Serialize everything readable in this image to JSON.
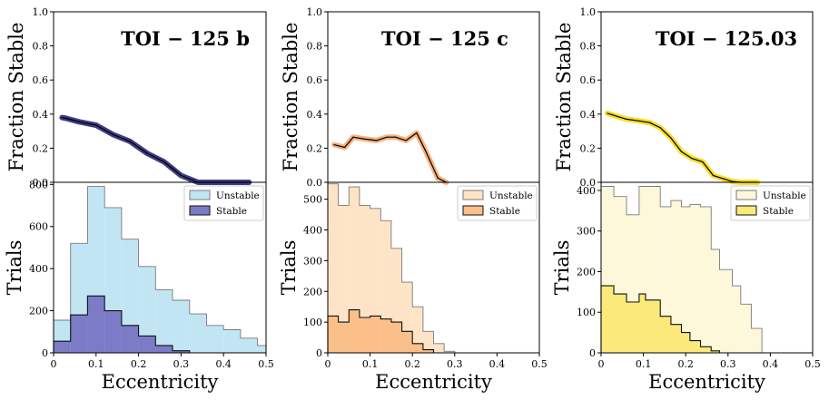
{
  "figure": {
    "xlabel": "Eccentricity",
    "top_ylabel": "Fraction Stable",
    "bottom_ylabel": "Trials",
    "legend": {
      "unstable": "Unstable",
      "stable": "Stable"
    }
  },
  "chart_data": [
    {
      "type": "line",
      "title": "TOI − 125 b",
      "ylabel": "Fraction Stable",
      "ylim": [
        0,
        1.0
      ],
      "xlim": [
        0,
        0.5
      ],
      "color": "#1a1a6e",
      "yticks": [
        "0.0",
        "0.2",
        "0.4",
        "0.6",
        "0.8",
        "1.0"
      ],
      "x": [
        0.02,
        0.03,
        0.06,
        0.1,
        0.14,
        0.18,
        0.22,
        0.26,
        0.3,
        0.34,
        0.38,
        0.42,
        0.46
      ],
      "y": [
        0.38,
        0.375,
        0.355,
        0.335,
        0.28,
        0.24,
        0.17,
        0.12,
        0.04,
        0.0,
        0.0,
        0.0,
        0.0
      ]
    },
    {
      "type": "line",
      "title": "TOI − 125 c",
      "ylabel": "Fraction Stable",
      "ylim": [
        0,
        1.0
      ],
      "xlim": [
        0,
        0.5
      ],
      "color": "#f5a46a",
      "yticks": [
        "0.0",
        "0.2",
        "0.4",
        "0.6",
        "0.8",
        "1.0"
      ],
      "x": [
        0.015,
        0.04,
        0.06,
        0.085,
        0.115,
        0.14,
        0.16,
        0.185,
        0.21,
        0.23,
        0.26,
        0.28
      ],
      "y": [
        0.22,
        0.205,
        0.265,
        0.255,
        0.245,
        0.265,
        0.265,
        0.245,
        0.29,
        0.19,
        0.025,
        0.0
      ]
    },
    {
      "type": "line",
      "title": "TOI − 125.03",
      "ylabel": "Fraction Stable",
      "ylim": [
        0,
        1.0
      ],
      "xlim": [
        0,
        0.5
      ],
      "color": "#f5d800",
      "yticks": [
        "0.0",
        "0.2",
        "0.4",
        "0.6",
        "0.8",
        "1.0"
      ],
      "x": [
        0.015,
        0.04,
        0.06,
        0.09,
        0.115,
        0.14,
        0.165,
        0.19,
        0.215,
        0.24,
        0.265,
        0.29,
        0.31,
        0.33,
        0.35,
        0.37
      ],
      "y": [
        0.405,
        0.385,
        0.37,
        0.36,
        0.35,
        0.32,
        0.26,
        0.18,
        0.14,
        0.12,
        0.04,
        0.02,
        0.005,
        0.0,
        0.0,
        0.0
      ]
    },
    {
      "type": "bar",
      "title": "",
      "xlabel": "Eccentricity",
      "ylabel": "Trials",
      "xlim": [
        0,
        0.5
      ],
      "ylim": [
        0,
        810
      ],
      "yticks": [
        0,
        200,
        400,
        600,
        800
      ],
      "xticks": [
        "0",
        "0.1",
        "0.2",
        "0.3",
        "0.4",
        "0.5"
      ],
      "bin_edges": [
        0,
        0.04,
        0.08,
        0.12,
        0.16,
        0.2,
        0.24,
        0.28,
        0.32,
        0.36,
        0.4,
        0.44,
        0.48,
        0.5
      ],
      "series": [
        {
          "name": "Unstable",
          "fill": "#c2e5f4",
          "edge": "#7a7a7a",
          "values": [
            155,
            520,
            790,
            690,
            540,
            410,
            300,
            250,
            185,
            130,
            110,
            70,
            35
          ]
        },
        {
          "name": "Stable",
          "fill": "#7b7bc6",
          "edge": "#111111",
          "values": [
            55,
            180,
            270,
            200,
            130,
            80,
            35,
            10,
            0,
            0,
            0,
            0,
            0
          ]
        }
      ]
    },
    {
      "type": "bar",
      "title": "",
      "xlabel": "Eccentricity",
      "ylabel": "Trials",
      "xlim": [
        0,
        0.5
      ],
      "ylim": [
        0,
        555
      ],
      "yticks": [
        0,
        100,
        200,
        300,
        400,
        500
      ],
      "xticks": [
        "0",
        "0.1",
        "0.2",
        "0.3",
        "0.4",
        "0.5"
      ],
      "bin_edges": [
        0,
        0.025,
        0.05,
        0.075,
        0.1,
        0.125,
        0.15,
        0.175,
        0.2,
        0.225,
        0.25,
        0.275,
        0.3
      ],
      "series": [
        {
          "name": "Unstable",
          "fill": "#fde4c6",
          "edge": "#7a7a7a",
          "values": [
            550,
            480,
            540,
            480,
            470,
            430,
            340,
            230,
            150,
            70,
            30,
            5
          ]
        },
        {
          "name": "Stable",
          "fill": "#fbbf8a",
          "edge": "#111111",
          "values": [
            120,
            100,
            140,
            115,
            120,
            110,
            100,
            70,
            30,
            10,
            0,
            0
          ]
        }
      ]
    },
    {
      "type": "bar",
      "title": "",
      "xlabel": "Eccentricity",
      "ylabel": "Trials",
      "xlim": [
        0,
        0.5
      ],
      "ylim": [
        0,
        420
      ],
      "yticks": [
        0,
        100,
        200,
        300,
        400
      ],
      "xticks": [
        "0",
        "0.1",
        "0.2",
        "0.3",
        "0.4",
        "0.5"
      ],
      "bin_edges": [
        0,
        0.03,
        0.06,
        0.09,
        0.105,
        0.14,
        0.165,
        0.19,
        0.21,
        0.235,
        0.26,
        0.28,
        0.31,
        0.33,
        0.355,
        0.38
      ],
      "series": [
        {
          "name": "Unstable",
          "fill": "#fef8da",
          "edge": "#7a7a7a",
          "values": [
            410,
            385,
            340,
            410,
            410,
            360,
            375,
            360,
            365,
            360,
            255,
            205,
            165,
            120,
            60
          ]
        },
        {
          "name": "Stable",
          "fill": "#fbe97a",
          "edge": "#111111",
          "values": [
            165,
            145,
            125,
            145,
            130,
            90,
            70,
            50,
            30,
            15,
            5,
            0,
            0,
            0,
            0
          ]
        }
      ]
    }
  ]
}
